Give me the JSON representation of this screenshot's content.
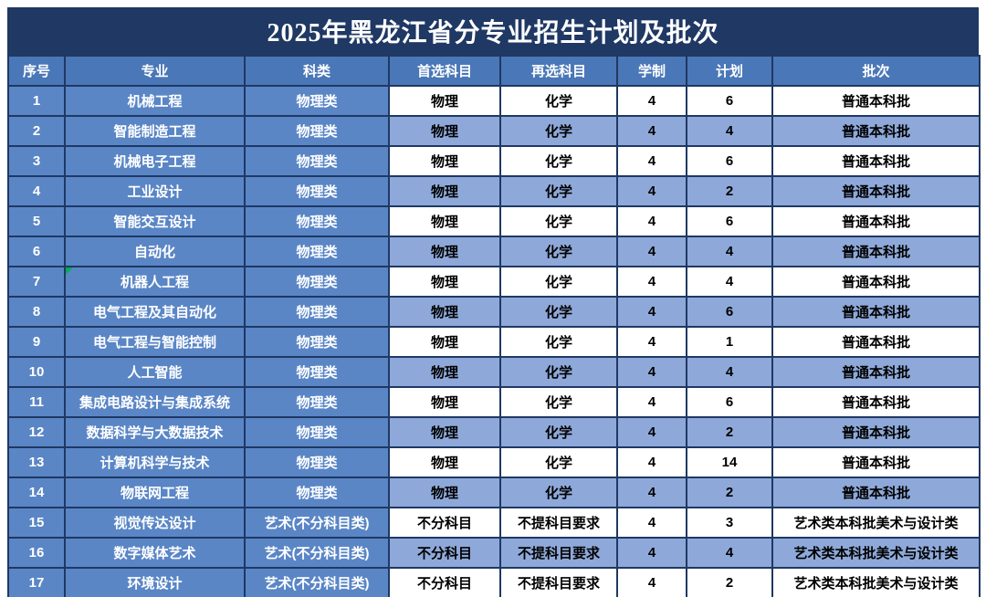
{
  "page_title": "2025年黑龙江省分专业招生计划及批次",
  "colors": {
    "title-bg": "#1F3864",
    "border": "#1F3864",
    "header-bg": "#4A77B7",
    "left-col-bg": "#5A86C6",
    "alt-row-bg": "#8EA9D9",
    "row-bg": "#FFFFFF",
    "header-text": "#FFFFFF",
    "data-text": "#000000",
    "marker-green": "#00B050"
  },
  "table": {
    "columns": [
      "序号",
      "专业",
      "科类",
      "首选科目",
      "再选科目",
      "学制",
      "计划",
      "批次"
    ],
    "rows": [
      [
        "1",
        "机械工程",
        "物理类",
        "物理",
        "化学",
        "4",
        "6",
        "普通本科批"
      ],
      [
        "2",
        "智能制造工程",
        "物理类",
        "物理",
        "化学",
        "4",
        "4",
        "普通本科批"
      ],
      [
        "3",
        "机械电子工程",
        "物理类",
        "物理",
        "化学",
        "4",
        "6",
        "普通本科批"
      ],
      [
        "4",
        "工业设计",
        "物理类",
        "物理",
        "化学",
        "4",
        "2",
        "普通本科批"
      ],
      [
        "5",
        "智能交互设计",
        "物理类",
        "物理",
        "化学",
        "4",
        "6",
        "普通本科批"
      ],
      [
        "6",
        "自动化",
        "物理类",
        "物理",
        "化学",
        "4",
        "4",
        "普通本科批"
      ],
      [
        "7",
        "机器人工程",
        "物理类",
        "物理",
        "化学",
        "4",
        "4",
        "普通本科批"
      ],
      [
        "8",
        "电气工程及其自动化",
        "物理类",
        "物理",
        "化学",
        "4",
        "6",
        "普通本科批"
      ],
      [
        "9",
        "电气工程与智能控制",
        "物理类",
        "物理",
        "化学",
        "4",
        "1",
        "普通本科批"
      ],
      [
        "10",
        "人工智能",
        "物理类",
        "物理",
        "化学",
        "4",
        "4",
        "普通本科批"
      ],
      [
        "11",
        "集成电路设计与集成系统",
        "物理类",
        "物理",
        "化学",
        "4",
        "6",
        "普通本科批"
      ],
      [
        "12",
        "数据科学与大数据技术",
        "物理类",
        "物理",
        "化学",
        "4",
        "2",
        "普通本科批"
      ],
      [
        "13",
        "计算机科学与技术",
        "物理类",
        "物理",
        "化学",
        "4",
        "14",
        "普通本科批"
      ],
      [
        "14",
        "物联网工程",
        "物理类",
        "物理",
        "化学",
        "4",
        "2",
        "普通本科批"
      ],
      [
        "15",
        "视觉传达设计",
        "艺术(不分科目类)",
        "不分科目",
        "不提科目要求",
        "4",
        "3",
        "艺术类本科批美术与设计类"
      ],
      [
        "16",
        "数字媒体艺术",
        "艺术(不分科目类)",
        "不分科目",
        "不提科目要求",
        "4",
        "4",
        "艺术类本科批美术与设计类"
      ],
      [
        "17",
        "环境设计",
        "艺术(不分科目类)",
        "不分科目",
        "不提科目要求",
        "4",
        "2",
        "艺术类本科批美术与设计类"
      ]
    ]
  },
  "marker": {
    "name": "green-corner-marker",
    "row": "7"
  }
}
